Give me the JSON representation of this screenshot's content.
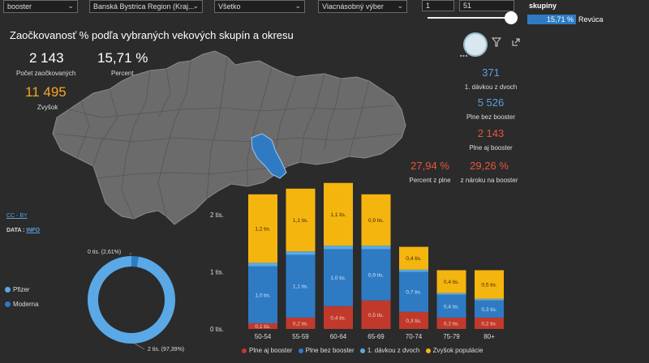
{
  "filters": [
    {
      "value": "booster"
    },
    {
      "value": "Banská Bystrica Region (Kraj..."
    },
    {
      "value": "Všetko"
    },
    {
      "value": "Viacnásobný výber"
    }
  ],
  "range": {
    "min": "1",
    "max": "51"
  },
  "skupiny": {
    "label": "skupiny",
    "value": "15,71 %",
    "name": "Revúca"
  },
  "title": "Zaočkovanosť % podľa vybraných vekových skupín a okresu",
  "kpi": {
    "count": "2 143",
    "count_label": "Počet zaočkovaných",
    "percent": "15,71 %",
    "percent_label": "Percent",
    "rest": "11 495",
    "rest_label": "Zvyšok"
  },
  "right_kpis": {
    "dose1": "371",
    "dose1_label": "1. dávkou z dvoch",
    "no_booster": "5 526",
    "no_booster_label": "Plne bez booster",
    "with_booster": "2 143",
    "with_booster_label": "Plne aj booster",
    "pct_full": "27,94 %",
    "pct_full_label": "Percent z plne",
    "pct_entitled": "29,26 %",
    "pct_entitled_label": "z nároku na booster"
  },
  "links": {
    "cc": "CC - BY",
    "data_label": "DATA : ",
    "data_link": "INFO"
  },
  "donut": {
    "legend": [
      {
        "name": "Pfizer",
        "color": "#5aa9e6"
      },
      {
        "name": "Moderna",
        "color": "#2e7bc4"
      }
    ],
    "label_small": "0 tis. (2,61%)",
    "label_big": "2 tis. (97,39%)"
  },
  "bottom_legend": [
    {
      "name": "Plne aj booster",
      "color": "#c0392b"
    },
    {
      "name": "Plne bez booster",
      "color": "#2e7bc4"
    },
    {
      "name": "1. dávkou z dvoch",
      "color": "#5aa9e6"
    },
    {
      "name": "Zvyšok populácie",
      "color": "#f5b50f"
    }
  ],
  "colors": {
    "booster": "#c0392b",
    "no_booster": "#2e7bc4",
    "dose1": "#5aa9e6",
    "rest": "#f5b50f",
    "region_highlight": "#2e7bc4",
    "map": "#6b6b6b"
  },
  "chart_data": {
    "type": "bar",
    "stacked": true,
    "categories": [
      "50-54",
      "55-59",
      "60-64",
      "65-69",
      "70-74",
      "75-79",
      "80+"
    ],
    "y_ticks": [
      "0 tis.",
      "1 tis.",
      "2 tis."
    ],
    "ylim": [
      0,
      2500
    ],
    "series": [
      {
        "name": "Plne aj booster",
        "values": [
          100,
          200,
          400,
          500,
          300,
          200,
          200
        ],
        "labels": [
          "0,1 tis.",
          "0,2 tis.",
          "0,4 tis.",
          "0,5 tis.",
          "0,3 tis.",
          "0,2 tis.",
          "0,2 tis."
        ]
      },
      {
        "name": "Plne bez booster",
        "values": [
          1000,
          1100,
          1000,
          900,
          700,
          400,
          300
        ],
        "labels": [
          "1,0 tis.",
          "1,1 tis.",
          "1,0 tis.",
          "0,9 tis.",
          "0,7 tis.",
          "0,4 tis.",
          "0,3 tis."
        ]
      },
      {
        "name": "1. dávkou z dvoch",
        "values": [
          60,
          60,
          60,
          60,
          40,
          30,
          30
        ],
        "labels": [
          "",
          "",
          "",
          "",
          "",
          "",
          ""
        ]
      },
      {
        "name": "Zvyšok populácie",
        "values": [
          1200,
          1100,
          1100,
          900,
          400,
          400,
          500
        ],
        "labels": [
          "1,2 tis.",
          "1,1 tis.",
          "1,1 tis.",
          "0,9 tis.",
          "0,4 tis.",
          "0,4 tis.",
          "0,5 tis."
        ]
      }
    ],
    "donut": {
      "type": "pie",
      "slices": [
        {
          "name": "Pfizer",
          "value": 97.39
        },
        {
          "name": "Moderna",
          "value": 2.61
        }
      ]
    }
  }
}
